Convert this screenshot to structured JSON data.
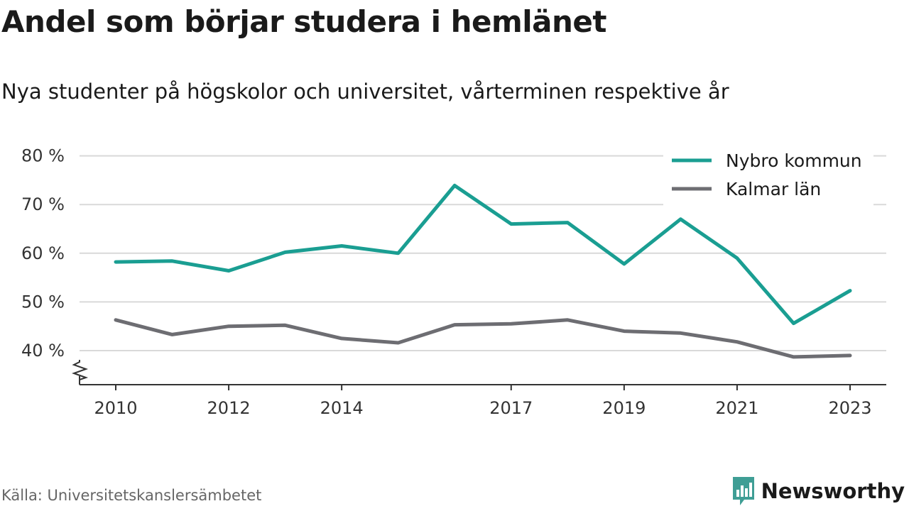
{
  "header": {
    "title": "Andel som börjar studera i hemlänet",
    "subtitle": "Nya studenter på högskolor och universitet, vårterminen respektive år"
  },
  "footer": {
    "source": "Källa: Universitetskanslersämbetet",
    "brand": "Newsworthy",
    "brand_icon": "bar-chart-speech-bubble-icon"
  },
  "colors": {
    "nybro": "#1a9e92",
    "kalmar": "#6d6d72",
    "brand": "#3f9e95",
    "grid": "#d9d9d9",
    "axis": "#333333"
  },
  "chart_data": {
    "type": "line",
    "x": [
      2010,
      2011,
      2012,
      2013,
      2014,
      2015,
      2016,
      2017,
      2018,
      2019,
      2020,
      2021,
      2022,
      2023
    ],
    "x_tick_labels": [
      "2010",
      "2012",
      "2014",
      "2017",
      "2019",
      "2021",
      "2023"
    ],
    "y_tick_labels": [
      "40 %",
      "50 %",
      "60 %",
      "70 %",
      "80 %"
    ],
    "y_ticks": [
      40,
      50,
      60,
      70,
      80
    ],
    "ylim": [
      33,
      80
    ],
    "y_axis_break": true,
    "grid": "horizontal",
    "legend_position": "top-right",
    "series": [
      {
        "name": "Nybro kommun",
        "color": "#1a9e92",
        "values": [
          58.2,
          58.4,
          56.4,
          60.2,
          61.5,
          60.0,
          73.9,
          66.0,
          66.3,
          57.8,
          67.0,
          59.0,
          45.6,
          52.3
        ]
      },
      {
        "name": "Kalmar län",
        "color": "#6d6d72",
        "values": [
          46.3,
          43.3,
          45.0,
          45.2,
          42.5,
          41.6,
          45.3,
          45.5,
          46.3,
          44.0,
          43.6,
          41.8,
          38.7,
          39.0
        ]
      }
    ]
  }
}
